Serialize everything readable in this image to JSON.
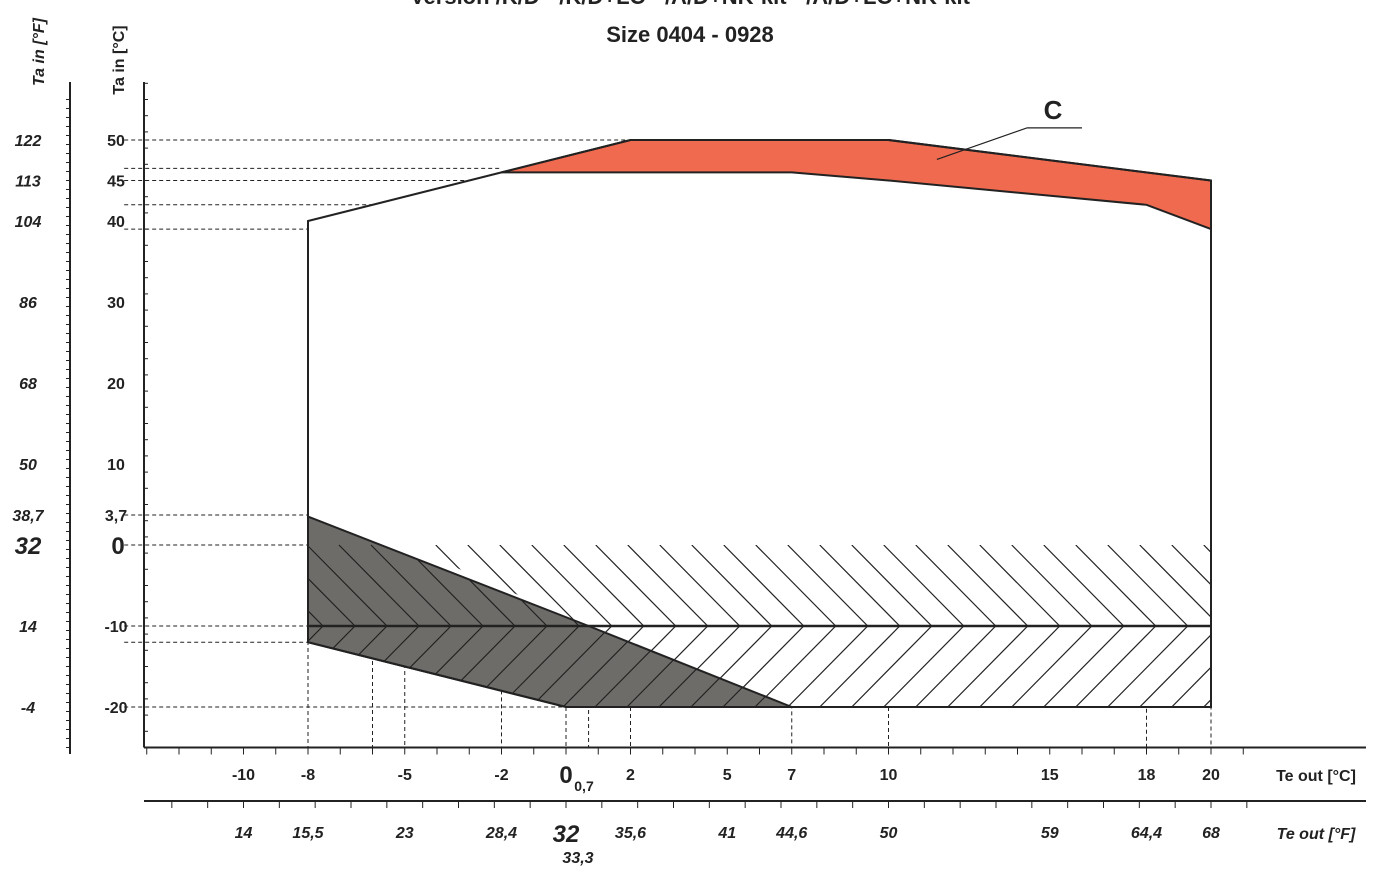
{
  "chart_data": {
    "type": "area",
    "title_lines": [
      "Version  /K/D - /K/D+LC - /A/D+NK-kit - /A/D+LC+NK-kit",
      "Size  0404 - 0928"
    ],
    "xlabel_c": "Te out [°C]",
    "xlabel_f": "Te out [°F]",
    "ylabel_c": "Ta in [°C]",
    "ylabel_f": "Ta in [°F]",
    "xlim": [
      -14,
      22
    ],
    "ylim": [
      -25,
      58
    ],
    "x_ticks_c": [
      {
        "v": -10,
        "label": "-10"
      },
      {
        "v": -8,
        "label": "-8"
      },
      {
        "v": -5,
        "label": "-5"
      },
      {
        "v": -2,
        "label": "-2"
      },
      {
        "v": 2,
        "label": "2"
      },
      {
        "v": 5,
        "label": "5"
      },
      {
        "v": 7,
        "label": "7"
      },
      {
        "v": 10,
        "label": "10"
      },
      {
        "v": 15,
        "label": "15"
      },
      {
        "v": 18,
        "label": "18"
      },
      {
        "v": 20,
        "label": "20"
      }
    ],
    "x_zero_c": {
      "v": 0,
      "label": "0",
      "sub": "0,7"
    },
    "x_ticks_f": [
      {
        "v": -10,
        "label": "14"
      },
      {
        "v": -8,
        "label": "15,5"
      },
      {
        "v": -5,
        "label": "23"
      },
      {
        "v": -2,
        "label": "28,4"
      },
      {
        "v": 2,
        "label": "35,6"
      },
      {
        "v": 5,
        "label": "41"
      },
      {
        "v": 7,
        "label": "44,6"
      },
      {
        "v": 10,
        "label": "50"
      },
      {
        "v": 15,
        "label": "59"
      },
      {
        "v": 18,
        "label": "64,4"
      },
      {
        "v": 20,
        "label": "68"
      }
    ],
    "x_zero_f": {
      "v": 0,
      "label": "32",
      "below": "33,3"
    },
    "y_ticks_c": [
      {
        "v": 50,
        "label": "50"
      },
      {
        "v": 45,
        "label": "45"
      },
      {
        "v": 40,
        "label": "40"
      },
      {
        "v": 30,
        "label": "30"
      },
      {
        "v": 20,
        "label": "20"
      },
      {
        "v": 10,
        "label": "10"
      },
      {
        "v": 3.7,
        "label": "3,7"
      },
      {
        "v": -10,
        "label": "-10"
      },
      {
        "v": -20,
        "label": "-20"
      }
    ],
    "y_zero_c": {
      "v": 0,
      "label": "0"
    },
    "y_ticks_f": [
      {
        "v": 50,
        "label": "122"
      },
      {
        "v": 45,
        "label": "113"
      },
      {
        "v": 40,
        "label": "104"
      },
      {
        "v": 30,
        "label": "86"
      },
      {
        "v": 20,
        "label": "68"
      },
      {
        "v": 10,
        "label": "50"
      },
      {
        "v": 3.7,
        "label": "38,7"
      },
      {
        "v": -10,
        "label": "14"
      },
      {
        "v": -20,
        "label": "-4"
      }
    ],
    "y_zero_f": {
      "v": 0,
      "label": "32"
    },
    "series": [
      {
        "name": "envelope",
        "fill": "none",
        "points": [
          [
            -8,
            40
          ],
          [
            -2,
            46
          ],
          [
            2,
            50
          ],
          [
            10,
            50
          ],
          [
            20,
            45
          ],
          [
            20,
            -20
          ],
          [
            7,
            -20
          ],
          [
            0,
            -20
          ],
          [
            -8,
            -12
          ]
        ]
      },
      {
        "name": "C",
        "fill": "#f06a4f",
        "points": [
          [
            -2,
            46
          ],
          [
            2,
            50
          ],
          [
            10,
            50
          ],
          [
            20,
            45
          ],
          [
            20,
            39
          ],
          [
            18,
            42
          ],
          [
            10,
            45
          ],
          [
            7,
            46
          ]
        ]
      },
      {
        "name": "gray",
        "fill": "#6e6c69",
        "points": [
          [
            -8,
            3.5
          ],
          [
            0.7,
            -10
          ],
          [
            7,
            -20
          ],
          [
            0,
            -20
          ],
          [
            -8,
            -12
          ]
        ]
      },
      {
        "name": "hatch-upper",
        "fill": "hatch",
        "points": [
          [
            -5,
            0
          ],
          [
            20,
            0
          ],
          [
            20,
            -10
          ],
          [
            0.7,
            -10
          ]
        ]
      },
      {
        "name": "hatch-lower",
        "fill": "hatch",
        "points": [
          [
            0.7,
            -10
          ],
          [
            20,
            -10
          ],
          [
            20,
            -20
          ],
          [
            7,
            -20
          ]
        ]
      }
    ],
    "region_label": "C",
    "colors": {
      "region_c": "#f06a4f",
      "gray_region": "#6e6c69",
      "lines": "#222222"
    }
  }
}
